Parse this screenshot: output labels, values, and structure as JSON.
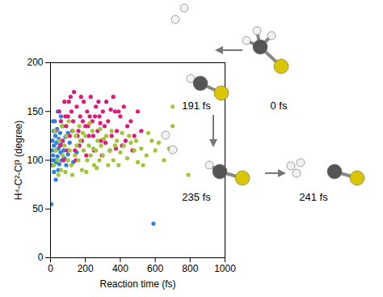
{
  "chart_data": {
    "type": "scatter",
    "x_label": "Reaction time (fs)",
    "y_label": "H⁴-C²-Cl³ (degree)",
    "xlim": [
      0,
      1000
    ],
    "ylim": [
      0,
      200
    ],
    "xticks": [
      0,
      200,
      400,
      600,
      800,
      1000
    ],
    "yticks": [
      0,
      50,
      100,
      150,
      200
    ],
    "grid": false,
    "marker": "circle",
    "annotations": [
      {
        "text": "0 fs"
      },
      {
        "text": "191 fs"
      },
      {
        "text": "235 fs"
      },
      {
        "text": "241 fs"
      }
    ],
    "series": [
      {
        "color": "#2f7fe0",
        "x": [
          5,
          8,
          10,
          12,
          15,
          18,
          20,
          22,
          25,
          28,
          30,
          33,
          35,
          38,
          40,
          42,
          45,
          48,
          50,
          55,
          58,
          60,
          65,
          70,
          75,
          80,
          85,
          90,
          100,
          110,
          130,
          150,
          5,
          590,
          20,
          30,
          15,
          60,
          100,
          45
        ],
        "values": [
          100,
          110,
          95,
          120,
          105,
          130,
          115,
          100,
          140,
          125,
          110,
          98,
          118,
          132,
          104,
          150,
          112,
          122,
          96,
          128,
          108,
          116,
          100,
          135,
          110,
          102,
          124,
          95,
          106,
          118,
          98,
          108,
          55,
          35,
          88,
          80,
          140,
          145,
          128,
          90
        ]
      },
      {
        "color": "#e0197d",
        "x": [
          30,
          50,
          60,
          70,
          80,
          90,
          100,
          110,
          115,
          120,
          130,
          140,
          150,
          160,
          170,
          180,
          190,
          200,
          210,
          220,
          230,
          240,
          250,
          260,
          270,
          280,
          290,
          300,
          310,
          320,
          330,
          350,
          360,
          370,
          380,
          400,
          410,
          420,
          440,
          460,
          480,
          500,
          520,
          75,
          95,
          125,
          135,
          145,
          165,
          185,
          205,
          225,
          245,
          275,
          295,
          340,
          390,
          430,
          470,
          55,
          85,
          105,
          155,
          175,
          215,
          255,
          285,
          315,
          345,
          375
        ],
        "values": [
          130,
          150,
          140,
          120,
          160,
          135,
          145,
          125,
          165,
          150,
          140,
          110,
          155,
          130,
          145,
          120,
          160,
          135,
          150,
          125,
          165,
          140,
          110,
          155,
          130,
          145,
          120,
          150,
          135,
          160,
          140,
          125,
          165,
          150,
          130,
          145,
          115,
          155,
          135,
          140,
          125,
          150,
          130,
          100,
          110,
          130,
          170,
          100,
          115,
          140,
          105,
          145,
          125,
          160,
          105,
          110,
          150,
          120,
          110,
          115,
          145,
          160,
          125,
          165,
          135,
          145,
          138,
          118,
          152,
          112
        ]
      },
      {
        "color": "#a2c43a",
        "x": [
          20,
          30,
          40,
          50,
          60,
          70,
          80,
          90,
          100,
          110,
          120,
          130,
          140,
          150,
          160,
          170,
          180,
          190,
          200,
          210,
          220,
          230,
          240,
          250,
          260,
          270,
          280,
          290,
          300,
          320,
          340,
          360,
          380,
          400,
          420,
          440,
          460,
          480,
          500,
          520,
          550,
          580,
          600,
          650,
          700,
          700,
          790,
          25,
          45,
          65,
          85,
          105,
          125,
          145,
          165,
          185,
          205,
          225,
          245,
          265,
          285,
          305,
          330,
          350,
          370,
          390,
          410,
          450,
          490,
          530,
          560,
          620,
          680
        ],
        "values": [
          95,
          110,
          100,
          120,
          90,
          105,
          115,
          125,
          100,
          110,
          95,
          130,
          105,
          115,
          100,
          120,
          90,
          110,
          125,
          100,
          115,
          105,
          130,
          95,
          110,
          120,
          100,
          115,
          105,
          125,
          110,
          100,
          120,
          108,
          115,
          102,
          118,
          110,
          98,
          112,
          105,
          120,
          110,
          100,
          155,
          135,
          85,
          130,
          85,
          135,
          88,
          140,
          85,
          125,
          135,
          128,
          88,
          138,
          112,
          92,
          132,
          122,
          95,
          130,
          115,
          95,
          128,
          125,
          120,
          95,
          128,
          118,
          112
        ]
      }
    ]
  }
}
